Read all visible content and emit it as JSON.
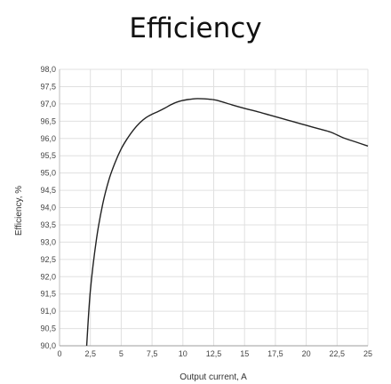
{
  "chart_data": {
    "type": "line",
    "title": "Efficiency",
    "xlabel": "Output current, A",
    "ylabel": "Efficiency, %",
    "xlim": [
      0,
      25
    ],
    "ylim": [
      90.0,
      98.0
    ],
    "x_ticks": [
      "0",
      "2,5",
      "5",
      "7,5",
      "10",
      "12,5",
      "15",
      "17,5",
      "20",
      "22,5",
      "25"
    ],
    "y_ticks": [
      "90,0",
      "90,5",
      "91,0",
      "91,5",
      "92,0",
      "92,5",
      "93,0",
      "93,5",
      "94,0",
      "94,5",
      "95,0",
      "95,5",
      "96,0",
      "96,5",
      "97,0",
      "97,5",
      "98,0"
    ],
    "grid": true,
    "line_color": "#222222",
    "series": [
      {
        "x": [
          2.2,
          2.5,
          3.0,
          3.5,
          4.0,
          4.5,
          5.0,
          5.5,
          6.0,
          6.5,
          7.0,
          7.5,
          8.0,
          8.5,
          9.0,
          9.5,
          10.0,
          10.5,
          11.0,
          11.5,
          12.0,
          12.5,
          13.0,
          14.0,
          15.0,
          16.0,
          17.0,
          18.0,
          19.0,
          20.0,
          21.0,
          22.0,
          23.0,
          24.0,
          25.0
        ],
        "y": [
          90.0,
          91.6,
          93.1,
          94.1,
          94.8,
          95.3,
          95.7,
          96.0,
          96.25,
          96.45,
          96.6,
          96.7,
          96.78,
          96.87,
          96.97,
          97.05,
          97.1,
          97.13,
          97.15,
          97.15,
          97.14,
          97.12,
          97.08,
          96.97,
          96.87,
          96.78,
          96.68,
          96.58,
          96.48,
          96.38,
          96.28,
          96.18,
          96.02,
          95.9,
          95.78
        ]
      }
    ]
  }
}
